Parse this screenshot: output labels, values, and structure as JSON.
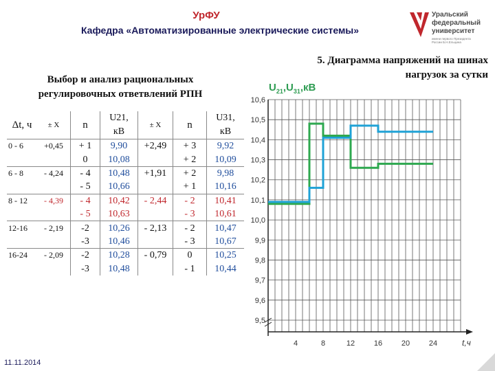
{
  "header": {
    "title": "УрФУ",
    "subtitle": "Кафедра «Автоматизированные электрические системы»",
    "logo_lines": [
      "Уральский",
      "федеральный",
      "университет"
    ],
    "logo_small": "имени первого Президента России Б.Н.Ельцина"
  },
  "left_title_line1": "Выбор и анализ рациональных",
  "left_title_line2": "регулировочных ответвлений РПН",
  "right_title_line1": "5. Диаграмма напряжений на шинах",
  "right_title_line2": "нагрузок за сутки",
  "table": {
    "head": {
      "dt": "Δt, ч",
      "pmx1": "± X",
      "n1": "n",
      "u21": [
        "U21,",
        "кВ"
      ],
      "pmx2": "± X",
      "n2": "n",
      "u31": [
        "U31,",
        "кВ"
      ]
    },
    "rows": [
      {
        "dt": "0 - 6",
        "x1": "+0,45",
        "n1": "+ 1",
        "u21": "9,90",
        "x2": "+2,49",
        "n2": "+ 3",
        "u31": "9,92"
      },
      {
        "dt": "",
        "x1": "",
        "n1": "0",
        "u21": "10,08",
        "x2": "",
        "n2": "+ 2",
        "u31": "10,09"
      },
      {
        "dt": "6 - 8",
        "x1": "- 4,24",
        "n1": "- 4",
        "u21": "10,48",
        "x2": "+1,91",
        "n2": "+ 2",
        "u31": "9,98"
      },
      {
        "dt": "",
        "x1": "",
        "n1": "- 5",
        "u21": "10,66",
        "x2": "",
        "n2": "+ 1",
        "u31": "10,16"
      },
      {
        "dt": "8 - 12",
        "x1": "- 4,39",
        "n1": "- 4",
        "u21": "10,42",
        "x2": "- 2,44",
        "n2": "- 2",
        "u31": "10,41"
      },
      {
        "dt": "",
        "x1": "",
        "n1": "- 5",
        "u21": "10,63",
        "x2": "",
        "n2": "- 3",
        "u31": "10,61"
      },
      {
        "dt": "12-16",
        "x1": "- 2,19",
        "n1": "-2",
        "u21": "10,26",
        "x2": "- 2,13",
        "n2": "- 2",
        "u31": "10,47"
      },
      {
        "dt": "",
        "x1": "",
        "n1": "-3",
        "u21": "10,46",
        "x2": "",
        "n2": "- 3",
        "u31": "10,67"
      },
      {
        "dt": "16-24",
        "x1": "- 2,09",
        "n1": "-2",
        "u21": "10,28",
        "x2": "- 0,79",
        "n2": "0",
        "u31": "10,25"
      },
      {
        "dt": "",
        "x1": "",
        "n1": "-3",
        "u21": "10,48",
        "x2": "",
        "n2": "- 1",
        "u31": "10,44"
      }
    ]
  },
  "footer_date": "11.11.2014",
  "chart_data": {
    "type": "line",
    "step": true,
    "ylabel_parts": [
      {
        "t": "U",
        "sub": false
      },
      {
        "t": "21",
        "sub": true
      },
      {
        "t": ",U",
        "sub": false
      },
      {
        "t": "31",
        "sub": true
      },
      {
        "t": ",кВ",
        "sub": false
      }
    ],
    "xlabel": "t,ч",
    "xticks": [
      4,
      8,
      12,
      16,
      20,
      24
    ],
    "yticks": [
      "10,6",
      "10,5",
      "10,4",
      "10,3",
      "10,2",
      "10,1",
      "10,0",
      "9,9",
      "9,8",
      "9,7",
      "9,6",
      "9,5"
    ],
    "yvalues": [
      10.6,
      10.5,
      10.4,
      10.3,
      10.2,
      10.1,
      10.0,
      9.9,
      9.8,
      9.7,
      9.6,
      9.5
    ],
    "xlim": [
      0,
      28
    ],
    "ylim": [
      9.45,
      10.62
    ],
    "grid": true,
    "series": [
      {
        "color": "#2ea84f",
        "x": [
          0,
          6,
          6,
          8,
          8,
          12,
          12,
          16,
          16,
          24
        ],
        "y": [
          10.08,
          10.08,
          10.48,
          10.48,
          10.42,
          10.42,
          10.26,
          10.26,
          10.28,
          10.28
        ]
      },
      {
        "color": "#1fa2d6",
        "x": [
          0,
          6,
          6,
          8,
          8,
          12,
          12,
          16,
          16,
          24
        ],
        "y": [
          10.09,
          10.09,
          10.16,
          10.16,
          10.41,
          10.41,
          10.47,
          10.47,
          10.44,
          10.44
        ]
      }
    ]
  }
}
